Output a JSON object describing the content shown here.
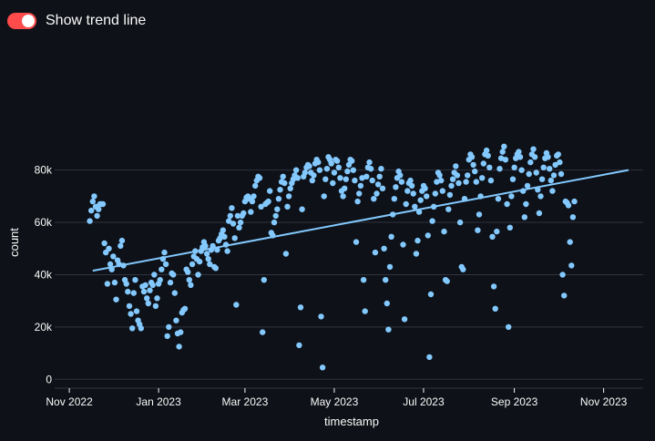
{
  "toggle": {
    "label": "Show trend line",
    "checked": true
  },
  "colors": {
    "background": "#0e1117",
    "accent": "#ff4b4b",
    "point": "#83c9ff",
    "grid": "#31333f",
    "text": "#fafafa"
  },
  "chart_data": {
    "type": "scatter",
    "xlabel": "timestamp",
    "ylabel": "count",
    "x_ticks": [
      "Nov 2022",
      "Jan 2023",
      "Mar 2023",
      "May 2023",
      "Jul 2023",
      "Sep 2023",
      "Nov 2023"
    ],
    "x_tick_dates": [
      "2022-11-01",
      "2023-01-01",
      "2023-03-01",
      "2023-05-01",
      "2023-07-01",
      "2023-09-01",
      "2023-11-01"
    ],
    "y_ticks": [
      "0",
      "20k",
      "40k",
      "60k",
      "80k"
    ],
    "y_tick_values": [
      0,
      20000,
      40000,
      60000,
      80000
    ],
    "xlim": [
      "2022-10-22",
      "2023-11-28"
    ],
    "ylim": [
      -2000,
      98000
    ],
    "grid": "horizontal",
    "legend": "none",
    "trend_line": {
      "start": [
        "2022-11-17",
        41500
      ],
      "end": [
        "2023-11-18",
        80000
      ]
    },
    "points": [
      [
        "2022-11-15",
        60500
      ],
      [
        "2022-11-16",
        64500
      ],
      [
        "2022-11-17",
        68000
      ],
      [
        "2022-11-18",
        70000
      ],
      [
        "2022-11-19",
        66000
      ],
      [
        "2022-11-20",
        62500
      ],
      [
        "2022-11-21",
        65000
      ],
      [
        "2022-11-22",
        67000
      ],
      [
        "2022-11-23",
        67000
      ],
      [
        "2022-11-24",
        67000
      ],
      [
        "2022-11-25",
        52000
      ],
      [
        "2022-11-26",
        48500
      ],
      [
        "2022-11-27",
        36500
      ],
      [
        "2022-11-28",
        50000
      ],
      [
        "2022-11-29",
        44000
      ],
      [
        "2022-11-30",
        42000
      ],
      [
        "2022-12-01",
        47000
      ],
      [
        "2022-12-02",
        37000
      ],
      [
        "2022-12-03",
        30500
      ],
      [
        "2022-12-04",
        45500
      ],
      [
        "2022-12-05",
        44000
      ],
      [
        "2022-12-06",
        51000
      ],
      [
        "2022-12-07",
        53000
      ],
      [
        "2022-12-08",
        43500
      ],
      [
        "2022-12-09",
        38000
      ],
      [
        "2022-12-10",
        36500
      ],
      [
        "2022-12-11",
        33500
      ],
      [
        "2022-12-12",
        28000
      ],
      [
        "2022-12-13",
        25000
      ],
      [
        "2022-12-14",
        19500
      ],
      [
        "2022-12-15",
        33000
      ],
      [
        "2022-12-16",
        38000
      ],
      [
        "2022-12-17",
        26000
      ],
      [
        "2022-12-18",
        22500
      ],
      [
        "2022-12-19",
        21000
      ],
      [
        "2022-12-20",
        19500
      ],
      [
        "2022-12-21",
        35500
      ],
      [
        "2022-12-22",
        33500
      ],
      [
        "2022-12-23",
        36000
      ],
      [
        "2022-12-24",
        31000
      ],
      [
        "2022-12-25",
        29000
      ],
      [
        "2022-12-26",
        34000
      ],
      [
        "2022-12-27",
        37000
      ],
      [
        "2022-12-28",
        36000
      ],
      [
        "2022-12-29",
        40000
      ],
      [
        "2022-12-30",
        28000
      ],
      [
        "2022-12-31",
        31000
      ],
      [
        "2023-01-01",
        36500
      ],
      [
        "2023-01-02",
        38000
      ],
      [
        "2023-01-03",
        42000
      ],
      [
        "2023-01-04",
        46000
      ],
      [
        "2023-01-05",
        48500
      ],
      [
        "2023-01-06",
        44000
      ],
      [
        "2023-01-07",
        16500
      ],
      [
        "2023-01-08",
        20000
      ],
      [
        "2023-01-09",
        37000
      ],
      [
        "2023-01-10",
        40500
      ],
      [
        "2023-01-11",
        40000
      ],
      [
        "2023-01-12",
        33000
      ],
      [
        "2023-01-13",
        22500
      ],
      [
        "2023-01-14",
        17500
      ],
      [
        "2023-01-15",
        12500
      ],
      [
        "2023-01-16",
        18000
      ],
      [
        "2023-01-17",
        25500
      ],
      [
        "2023-01-18",
        26500
      ],
      [
        "2023-01-19",
        27000
      ],
      [
        "2023-01-20",
        42000
      ],
      [
        "2023-01-21",
        41000
      ],
      [
        "2023-01-22",
        38000
      ],
      [
        "2023-01-23",
        36000
      ],
      [
        "2023-01-24",
        44000
      ],
      [
        "2023-01-25",
        47000
      ],
      [
        "2023-01-26",
        49000
      ],
      [
        "2023-01-27",
        46000
      ],
      [
        "2023-01-28",
        40000
      ],
      [
        "2023-01-29",
        45000
      ],
      [
        "2023-01-30",
        49000
      ],
      [
        "2023-01-31",
        50500
      ],
      [
        "2023-02-01",
        52500
      ],
      [
        "2023-02-02",
        51000
      ],
      [
        "2023-02-03",
        48000
      ],
      [
        "2023-02-04",
        46000
      ],
      [
        "2023-02-05",
        44000
      ],
      [
        "2023-02-06",
        49500
      ],
      [
        "2023-02-07",
        51000
      ],
      [
        "2023-02-08",
        43000
      ],
      [
        "2023-02-09",
        42500
      ],
      [
        "2023-02-10",
        49500
      ],
      [
        "2023-02-11",
        53000
      ],
      [
        "2023-02-12",
        54000
      ],
      [
        "2023-02-13",
        55500
      ],
      [
        "2023-02-14",
        57000
      ],
      [
        "2023-02-15",
        54500
      ],
      [
        "2023-02-16",
        51500
      ],
      [
        "2023-02-17",
        49000
      ],
      [
        "2023-02-18",
        60500
      ],
      [
        "2023-02-19",
        62500
      ],
      [
        "2023-02-20",
        65500
      ],
      [
        "2023-02-21",
        59500
      ],
      [
        "2023-02-22",
        54000
      ],
      [
        "2023-02-23",
        28500
      ],
      [
        "2023-02-24",
        62500
      ],
      [
        "2023-02-25",
        58000
      ],
      [
        "2023-02-26",
        60000
      ],
      [
        "2023-02-27",
        62500
      ],
      [
        "2023-02-28",
        63500
      ],
      [
        "2023-03-01",
        68000
      ],
      [
        "2023-03-02",
        69500
      ],
      [
        "2023-03-03",
        70000
      ],
      [
        "2023-03-04",
        69000
      ],
      [
        "2023-03-05",
        64000
      ],
      [
        "2023-03-06",
        68000
      ],
      [
        "2023-03-07",
        70000
      ],
      [
        "2023-03-08",
        74000
      ],
      [
        "2023-03-09",
        76000
      ],
      [
        "2023-03-10",
        77500
      ],
      [
        "2023-03-11",
        77000
      ],
      [
        "2023-03-12",
        66000
      ],
      [
        "2023-03-13",
        18000
      ],
      [
        "2023-03-14",
        38000
      ],
      [
        "2023-03-15",
        67000
      ],
      [
        "2023-03-16",
        67500
      ],
      [
        "2023-03-17",
        68000
      ],
      [
        "2023-03-18",
        72000
      ],
      [
        "2023-03-19",
        56000
      ],
      [
        "2023-03-20",
        55000
      ],
      [
        "2023-03-21",
        60000
      ],
      [
        "2023-03-22",
        62500
      ],
      [
        "2023-03-23",
        65000
      ],
      [
        "2023-03-24",
        69000
      ],
      [
        "2023-03-25",
        72500
      ],
      [
        "2023-03-26",
        75500
      ],
      [
        "2023-03-27",
        77500
      ],
      [
        "2023-03-28",
        75000
      ],
      [
        "2023-03-29",
        48000
      ],
      [
        "2023-03-30",
        66000
      ],
      [
        "2023-03-31",
        70000
      ],
      [
        "2023-04-01",
        73000
      ],
      [
        "2023-04-02",
        75000
      ],
      [
        "2023-04-03",
        76500
      ],
      [
        "2023-04-04",
        78000
      ],
      [
        "2023-04-05",
        80000
      ],
      [
        "2023-04-06",
        77000
      ],
      [
        "2023-04-07",
        13000
      ],
      [
        "2023-04-08",
        27500
      ],
      [
        "2023-04-09",
        65000
      ],
      [
        "2023-04-10",
        77500
      ],
      [
        "2023-04-11",
        79000
      ],
      [
        "2023-04-12",
        81000
      ],
      [
        "2023-04-13",
        82000
      ],
      [
        "2023-04-14",
        81500
      ],
      [
        "2023-04-15",
        79000
      ],
      [
        "2023-04-16",
        76000
      ],
      [
        "2023-04-17",
        78000
      ],
      [
        "2023-04-18",
        82500
      ],
      [
        "2023-04-19",
        84000
      ],
      [
        "2023-04-20",
        83000
      ],
      [
        "2023-04-21",
        80000
      ],
      [
        "2023-04-22",
        24000
      ],
      [
        "2023-04-23",
        4500
      ],
      [
        "2023-04-24",
        70000
      ],
      [
        "2023-04-25",
        76500
      ],
      [
        "2023-04-26",
        80500
      ],
      [
        "2023-04-27",
        85000
      ],
      [
        "2023-04-28",
        84000
      ],
      [
        "2023-04-29",
        82500
      ],
      [
        "2023-04-30",
        75000
      ],
      [
        "2023-05-01",
        79000
      ],
      [
        "2023-05-02",
        84000
      ],
      [
        "2023-05-03",
        83500
      ],
      [
        "2023-05-04",
        81000
      ],
      [
        "2023-05-05",
        77000
      ],
      [
        "2023-05-06",
        72000
      ],
      [
        "2023-05-07",
        70000
      ],
      [
        "2023-05-08",
        73000
      ],
      [
        "2023-05-09",
        76500
      ],
      [
        "2023-05-10",
        79500
      ],
      [
        "2023-05-11",
        82000
      ],
      [
        "2023-05-12",
        84000
      ],
      [
        "2023-05-13",
        83500
      ],
      [
        "2023-05-14",
        80000
      ],
      [
        "2023-05-15",
        76000
      ],
      [
        "2023-05-16",
        52500
      ],
      [
        "2023-05-17",
        68000
      ],
      [
        "2023-05-18",
        71000
      ],
      [
        "2023-05-19",
        74000
      ],
      [
        "2023-05-20",
        77000
      ],
      [
        "2023-05-21",
        38000
      ],
      [
        "2023-05-22",
        26000
      ],
      [
        "2023-05-23",
        77500
      ],
      [
        "2023-05-24",
        81000
      ],
      [
        "2023-05-25",
        83000
      ],
      [
        "2023-05-26",
        80500
      ],
      [
        "2023-05-27",
        76000
      ],
      [
        "2023-05-28",
        69000
      ],
      [
        "2023-05-29",
        48500
      ],
      [
        "2023-05-30",
        71000
      ],
      [
        "2023-05-31",
        74500
      ],
      [
        "2023-06-01",
        77500
      ],
      [
        "2023-06-02",
        80500
      ],
      [
        "2023-06-03",
        73000
      ],
      [
        "2023-06-04",
        50000
      ],
      [
        "2023-06-05",
        38000
      ],
      [
        "2023-06-06",
        29000
      ],
      [
        "2023-06-07",
        19000
      ],
      [
        "2023-06-08",
        43000
      ],
      [
        "2023-06-09",
        54500
      ],
      [
        "2023-06-10",
        63000
      ],
      [
        "2023-06-11",
        69000
      ],
      [
        "2023-06-12",
        73500
      ],
      [
        "2023-06-13",
        77000
      ],
      [
        "2023-06-14",
        79500
      ],
      [
        "2023-06-15",
        78000
      ],
      [
        "2023-06-16",
        75500
      ],
      [
        "2023-06-17",
        51500
      ],
      [
        "2023-06-18",
        23000
      ],
      [
        "2023-06-19",
        67000
      ],
      [
        "2023-06-20",
        72000
      ],
      [
        "2023-06-21",
        75000
      ],
      [
        "2023-06-22",
        76000
      ],
      [
        "2023-06-23",
        74000
      ],
      [
        "2023-06-24",
        71000
      ],
      [
        "2023-06-25",
        66000
      ],
      [
        "2023-06-26",
        48000
      ],
      [
        "2023-06-27",
        53000
      ],
      [
        "2023-06-28",
        64000
      ],
      [
        "2023-06-29",
        68500
      ],
      [
        "2023-06-30",
        72000
      ],
      [
        "2023-07-01",
        74000
      ],
      [
        "2023-07-02",
        73000
      ],
      [
        "2023-07-03",
        70000
      ],
      [
        "2023-07-04",
        55000
      ],
      [
        "2023-07-05",
        8500
      ],
      [
        "2023-07-06",
        32500
      ],
      [
        "2023-07-07",
        60500
      ],
      [
        "2023-07-08",
        66000
      ],
      [
        "2023-07-09",
        71000
      ],
      [
        "2023-07-10",
        75500
      ],
      [
        "2023-07-11",
        79000
      ],
      [
        "2023-07-12",
        78000
      ],
      [
        "2023-07-13",
        76000
      ],
      [
        "2023-07-14",
        72000
      ],
      [
        "2023-07-15",
        56500
      ],
      [
        "2023-07-16",
        38000
      ],
      [
        "2023-07-17",
        37500
      ],
      [
        "2023-07-18",
        65000
      ],
      [
        "2023-07-19",
        70500
      ],
      [
        "2023-07-20",
        74000
      ],
      [
        "2023-07-21",
        76500
      ],
      [
        "2023-07-22",
        79000
      ],
      [
        "2023-07-23",
        81500
      ],
      [
        "2023-07-24",
        78000
      ],
      [
        "2023-07-25",
        75000
      ],
      [
        "2023-07-26",
        60000
      ],
      [
        "2023-07-27",
        43000
      ],
      [
        "2023-07-28",
        42000
      ],
      [
        "2023-07-29",
        69000
      ],
      [
        "2023-07-30",
        75500
      ],
      [
        "2023-07-31",
        78000
      ],
      [
        "2023-08-01",
        84000
      ],
      [
        "2023-08-02",
        86000
      ],
      [
        "2023-08-03",
        85000
      ],
      [
        "2023-08-04",
        82000
      ],
      [
        "2023-08-05",
        79500
      ],
      [
        "2023-08-06",
        75500
      ],
      [
        "2023-08-07",
        57000
      ],
      [
        "2023-08-08",
        63000
      ],
      [
        "2023-08-09",
        70000
      ],
      [
        "2023-08-10",
        77000
      ],
      [
        "2023-08-11",
        82500
      ],
      [
        "2023-08-12",
        86000
      ],
      [
        "2023-08-13",
        87500
      ],
      [
        "2023-08-14",
        85500
      ],
      [
        "2023-08-15",
        81000
      ],
      [
        "2023-08-16",
        76000
      ],
      [
        "2023-08-17",
        54500
      ],
      [
        "2023-08-18",
        35500
      ],
      [
        "2023-08-19",
        27000
      ],
      [
        "2023-08-20",
        56500
      ],
      [
        "2023-08-21",
        69000
      ],
      [
        "2023-08-22",
        80500
      ],
      [
        "2023-08-23",
        84500
      ],
      [
        "2023-08-24",
        87000
      ],
      [
        "2023-08-25",
        89000
      ],
      [
        "2023-08-26",
        84000
      ],
      [
        "2023-08-27",
        67000
      ],
      [
        "2023-08-28",
        20000
      ],
      [
        "2023-08-29",
        58000
      ],
      [
        "2023-08-30",
        70000
      ],
      [
        "2023-08-31",
        76500
      ],
      [
        "2023-09-01",
        81000
      ],
      [
        "2023-09-02",
        84500
      ],
      [
        "2023-09-03",
        86000
      ],
      [
        "2023-09-04",
        87000
      ],
      [
        "2023-09-05",
        85000
      ],
      [
        "2023-09-06",
        80000
      ],
      [
        "2023-09-07",
        72000
      ],
      [
        "2023-09-08",
        62000
      ],
      [
        "2023-09-09",
        67000
      ],
      [
        "2023-09-10",
        74000
      ],
      [
        "2023-09-11",
        78500
      ],
      [
        "2023-09-12",
        83000
      ],
      [
        "2023-09-13",
        86000
      ],
      [
        "2023-09-14",
        88000
      ],
      [
        "2023-09-15",
        85000
      ],
      [
        "2023-09-16",
        79000
      ],
      [
        "2023-09-17",
        72500
      ],
      [
        "2023-09-18",
        63500
      ],
      [
        "2023-09-19",
        70000
      ],
      [
        "2023-09-20",
        76500
      ],
      [
        "2023-09-21",
        81000
      ],
      [
        "2023-09-22",
        84500
      ],
      [
        "2023-09-23",
        86500
      ],
      [
        "2023-09-24",
        85000
      ],
      [
        "2023-09-25",
        80500
      ],
      [
        "2023-09-26",
        76000
      ],
      [
        "2023-09-27",
        72000
      ],
      [
        "2023-09-28",
        78000
      ],
      [
        "2023-09-29",
        82000
      ],
      [
        "2023-09-30",
        85500
      ],
      [
        "2023-10-01",
        86000
      ],
      [
        "2023-10-02",
        83000
      ],
      [
        "2023-10-03",
        78500
      ],
      [
        "2023-10-04",
        40000
      ],
      [
        "2023-10-05",
        32000
      ],
      [
        "2023-10-06",
        68000
      ],
      [
        "2023-10-07",
        67500
      ],
      [
        "2023-10-08",
        66500
      ],
      [
        "2023-10-09",
        52500
      ],
      [
        "2023-10-10",
        43500
      ],
      [
        "2023-10-11",
        62000
      ],
      [
        "2023-10-12",
        68000
      ]
    ]
  }
}
